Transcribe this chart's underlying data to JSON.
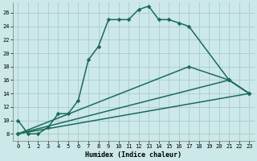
{
  "xlabel": "Humidex (Indice chaleur)",
  "background_color": "#cce8e8",
  "grid_color": "#aacccc",
  "line_color": "#1a6b5a",
  "xlim": [
    -0.5,
    23.5
  ],
  "ylim": [
    7.0,
    27.5
  ],
  "xticks": [
    0,
    1,
    2,
    3,
    4,
    5,
    6,
    7,
    8,
    9,
    10,
    11,
    12,
    13,
    14,
    15,
    16,
    17,
    18,
    19,
    20,
    21,
    22,
    23
  ],
  "yticks": [
    8,
    10,
    12,
    14,
    16,
    18,
    20,
    22,
    24,
    26
  ],
  "main_curve_x": [
    0,
    1,
    2,
    3,
    4,
    5,
    6,
    7,
    8,
    9,
    10,
    11,
    12,
    13,
    14,
    15,
    16,
    17,
    21,
    23
  ],
  "main_curve_y": [
    10,
    8,
    8,
    9,
    11,
    11,
    13,
    19,
    21,
    25,
    25,
    25,
    26.5,
    27,
    25,
    25,
    24.5,
    24,
    16,
    14
  ],
  "line1_x": [
    0,
    17,
    21,
    23
  ],
  "line1_y": [
    8,
    18,
    16,
    14
  ],
  "line2_x": [
    0,
    21,
    23
  ],
  "line2_y": [
    8,
    16,
    14
  ],
  "line3_x": [
    0,
    23
  ],
  "line3_y": [
    8,
    14
  ]
}
